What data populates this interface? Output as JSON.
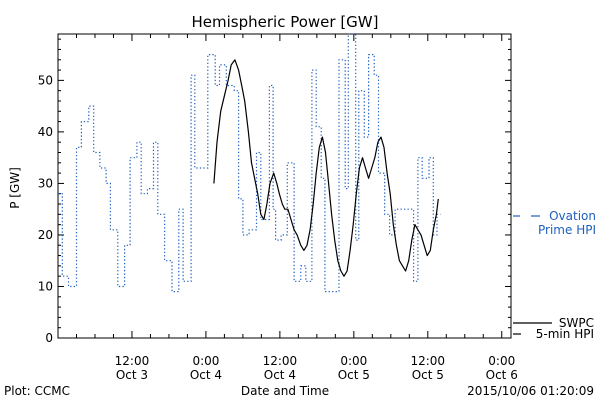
{
  "chart_data": {
    "type": "line",
    "title": "Hemispheric Power [GW]",
    "ylabel": "P [GW]",
    "xlabel": "Date and Time",
    "x_ticks": [
      {
        "x": 12,
        "line1": "12:00",
        "line2": "Oct 3"
      },
      {
        "x": 24,
        "line1": "0:00",
        "line2": "Oct 4"
      },
      {
        "x": 36,
        "line1": "12:00",
        "line2": "Oct 4"
      },
      {
        "x": 48,
        "line1": "0:00",
        "line2": "Oct 5"
      },
      {
        "x": 60,
        "line1": "12:00",
        "line2": "Oct 5"
      },
      {
        "x": 72,
        "line1": "0:00",
        "line2": "Oct 6"
      }
    ],
    "xlim": [
      0,
      73.5
    ],
    "ylim": [
      0,
      59
    ],
    "y_ticks": [
      0,
      10,
      20,
      30,
      40,
      50
    ],
    "grid": false,
    "series": [
      {
        "name": "Ovation Prime HPI",
        "color": "#1f5fbf",
        "style": "dotted-step",
        "points": [
          [
            0,
            28
          ],
          [
            0.7,
            12
          ],
          [
            1.7,
            10
          ],
          [
            3,
            37
          ],
          [
            3.8,
            42
          ],
          [
            5,
            45
          ],
          [
            5.8,
            36
          ],
          [
            6.8,
            33
          ],
          [
            7.8,
            30
          ],
          [
            8.5,
            21
          ],
          [
            9.7,
            10
          ],
          [
            10.8,
            18
          ],
          [
            11.7,
            35
          ],
          [
            12.8,
            38
          ],
          [
            13.5,
            28
          ],
          [
            14.5,
            29
          ],
          [
            15.5,
            38
          ],
          [
            16.2,
            24
          ],
          [
            17.3,
            15
          ],
          [
            18.5,
            9
          ],
          [
            19.6,
            25
          ],
          [
            20.3,
            11
          ],
          [
            21.6,
            51
          ],
          [
            22.2,
            33
          ],
          [
            24.3,
            55
          ],
          [
            25.5,
            49
          ],
          [
            26.2,
            53
          ],
          [
            27.3,
            49
          ],
          [
            28.6,
            48
          ],
          [
            29.3,
            27
          ],
          [
            30,
            20
          ],
          [
            31,
            21
          ],
          [
            32.2,
            36
          ],
          [
            32.9,
            23
          ],
          [
            34.3,
            49
          ],
          [
            34.9,
            25
          ],
          [
            35.3,
            19
          ],
          [
            36.2,
            20
          ],
          [
            37.2,
            34
          ],
          [
            38.3,
            11
          ],
          [
            39.4,
            14
          ],
          [
            40.2,
            11
          ],
          [
            41.2,
            52
          ],
          [
            41.9,
            41
          ],
          [
            42.7,
            31
          ],
          [
            43.3,
            9
          ],
          [
            45.6,
            54
          ],
          [
            46.6,
            29
          ],
          [
            47.1,
            59
          ],
          [
            48.3,
            19
          ],
          [
            48.8,
            48
          ],
          [
            49.7,
            39
          ],
          [
            50.4,
            55
          ],
          [
            51.3,
            51
          ],
          [
            52,
            32
          ],
          [
            53,
            24
          ],
          [
            53.8,
            20
          ],
          [
            54.7,
            25
          ],
          [
            56.9,
            25
          ],
          [
            57.7,
            11
          ],
          [
            58.4,
            35
          ],
          [
            59.1,
            31
          ],
          [
            60.2,
            35
          ],
          [
            60.9,
            20
          ],
          [
            61.5,
            24
          ]
        ]
      },
      {
        "name": "SWPC 5-min HPI",
        "color": "#000000",
        "style": "solid",
        "points": [
          [
            25.3,
            30
          ],
          [
            25.8,
            38
          ],
          [
            26.4,
            44
          ],
          [
            27,
            47
          ],
          [
            27.6,
            50
          ],
          [
            28.1,
            53
          ],
          [
            28.7,
            54
          ],
          [
            29.3,
            52
          ],
          [
            29.8,
            49
          ],
          [
            30.3,
            46
          ],
          [
            30.9,
            40
          ],
          [
            31.4,
            34
          ],
          [
            31.9,
            31
          ],
          [
            32.4,
            28
          ],
          [
            32.9,
            24
          ],
          [
            33.4,
            23
          ],
          [
            33.9,
            26
          ],
          [
            34.4,
            30
          ],
          [
            35,
            32
          ],
          [
            35.5,
            30
          ],
          [
            35.9,
            28
          ],
          [
            36.4,
            26
          ],
          [
            36.8,
            25
          ],
          [
            37.3,
            25
          ],
          [
            37.8,
            23
          ],
          [
            38.3,
            21
          ],
          [
            38.8,
            20
          ],
          [
            39.4,
            18
          ],
          [
            39.9,
            17
          ],
          [
            40.4,
            18
          ],
          [
            40.9,
            21
          ],
          [
            41.4,
            26
          ],
          [
            41.9,
            32
          ],
          [
            42.4,
            37
          ],
          [
            42.9,
            39
          ],
          [
            43.4,
            36
          ],
          [
            43.9,
            30
          ],
          [
            44.4,
            24
          ],
          [
            44.9,
            19
          ],
          [
            45.4,
            15
          ],
          [
            45.9,
            13
          ],
          [
            46.4,
            12
          ],
          [
            46.9,
            13
          ],
          [
            47.4,
            17
          ],
          [
            47.9,
            22
          ],
          [
            48.4,
            28
          ],
          [
            48.9,
            33
          ],
          [
            49.4,
            35
          ],
          [
            49.9,
            33
          ],
          [
            50.4,
            31
          ],
          [
            50.9,
            33
          ],
          [
            51.4,
            35
          ],
          [
            51.9,
            38
          ],
          [
            52.4,
            39
          ],
          [
            52.9,
            37
          ],
          [
            53.4,
            32
          ],
          [
            53.9,
            28
          ],
          [
            54.4,
            22
          ],
          [
            54.9,
            18
          ],
          [
            55.4,
            15
          ],
          [
            55.9,
            14
          ],
          [
            56.4,
            13
          ],
          [
            56.9,
            15
          ],
          [
            57.4,
            19
          ],
          [
            57.9,
            22
          ],
          [
            58.4,
            21
          ],
          [
            58.9,
            20
          ],
          [
            59.4,
            18
          ],
          [
            59.9,
            16
          ],
          [
            60.4,
            17
          ],
          [
            60.9,
            21
          ],
          [
            61.4,
            24
          ],
          [
            61.7,
            27
          ]
        ]
      }
    ],
    "legend": {
      "ovation_line1": "Ovation",
      "ovation_line2": "Prime HPI",
      "swpc_line1": "SWPC",
      "swpc_line2": "5-min HPI"
    }
  },
  "footer": {
    "left": "Plot: CCMC",
    "center": "Date and Time",
    "right": "2015/10/06 01:20:09"
  },
  "colors": {
    "ovation": "#1f5fbf",
    "swpc": "#000000"
  }
}
